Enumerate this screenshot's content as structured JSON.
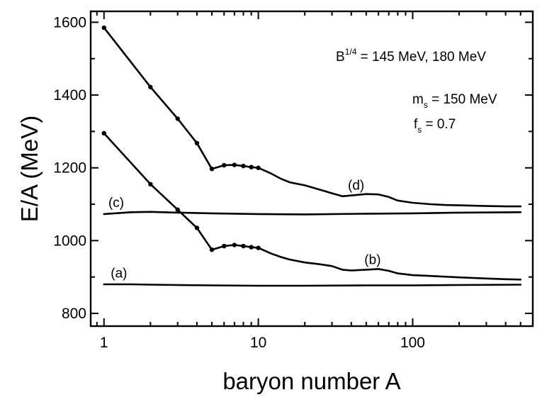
{
  "chart_data": {
    "type": "line",
    "xlabel": "baryon number  A",
    "ylabel": "E/A  (MeV)",
    "xscale": "log",
    "xlim": [
      0.82,
      600
    ],
    "ylim": [
      765,
      1630
    ],
    "xticks": [
      {
        "value": 1,
        "label": "1"
      },
      {
        "value": 10,
        "label": "10"
      },
      {
        "value": 100,
        "label": "100"
      }
    ],
    "yticks": [
      {
        "value": 800,
        "label": "800"
      },
      {
        "value": 1000,
        "label": "1000"
      },
      {
        "value": 1200,
        "label": "1200"
      },
      {
        "value": 1400,
        "label": "1400"
      },
      {
        "value": 1600,
        "label": "1600"
      }
    ],
    "annotations": [
      {
        "id": "bag",
        "base": "B",
        "sup": "1/4",
        "rest": " = 145 MeV, 180 MeV"
      },
      {
        "id": "ms",
        "base": "m",
        "sub": "s",
        "rest": "  = 150 MeV"
      },
      {
        "id": "fs",
        "base": "f",
        "sub": "s",
        "rest": " = 0.7"
      }
    ],
    "series": [
      {
        "label": "(a)",
        "x": [
          1,
          1.5,
          2,
          3,
          5,
          10,
          20,
          50,
          100,
          200,
          500
        ],
        "y": [
          880,
          880,
          879,
          878,
          877,
          876,
          876,
          877,
          877,
          878,
          879
        ],
        "markers": []
      },
      {
        "label": "(b)",
        "x": [
          1,
          2,
          3,
          4,
          5,
          6,
          7,
          8,
          9,
          10,
          12,
          14,
          16,
          20,
          25,
          30,
          35,
          40,
          50,
          60,
          70,
          80,
          100,
          130,
          160,
          200,
          300,
          400,
          500
        ],
        "y": [
          1295,
          1155,
          1085,
          1035,
          975,
          985,
          988,
          985,
          982,
          980,
          965,
          955,
          948,
          940,
          935,
          930,
          920,
          918,
          920,
          922,
          917,
          910,
          905,
          903,
          901,
          899,
          896,
          894,
          893
        ],
        "markers": [
          1,
          2,
          3,
          4,
          5,
          6,
          7,
          8,
          9,
          10
        ]
      },
      {
        "label": "(c)",
        "x": [
          1,
          1.5,
          2,
          3,
          5,
          10,
          20,
          50,
          100,
          200,
          500
        ],
        "y": [
          1073,
          1078,
          1079,
          1077,
          1075,
          1073,
          1072,
          1074,
          1075,
          1077,
          1078
        ],
        "markers": []
      },
      {
        "label": "(d)",
        "x": [
          1,
          2,
          3,
          4,
          5,
          6,
          7,
          8,
          9,
          10,
          12,
          14,
          16,
          20,
          25,
          30,
          35,
          40,
          50,
          60,
          70,
          80,
          100,
          130,
          160,
          200,
          300,
          400,
          500
        ],
        "y": [
          1585,
          1422,
          1335,
          1268,
          1197,
          1207,
          1208,
          1205,
          1202,
          1200,
          1185,
          1170,
          1160,
          1152,
          1140,
          1130,
          1122,
          1124,
          1128,
          1127,
          1120,
          1110,
          1104,
          1100,
          1098,
          1097,
          1095,
          1094,
          1094
        ]
      }
    ],
    "series_label_positions": [
      {
        "label": "(a)",
        "x": 1.25,
        "y": 898
      },
      {
        "label": "(b)",
        "x": 55,
        "y": 935
      },
      {
        "label": "(c)",
        "x": 1.2,
        "y": 1092
      },
      {
        "label": "(d)",
        "x": 43,
        "y": 1140
      }
    ]
  }
}
